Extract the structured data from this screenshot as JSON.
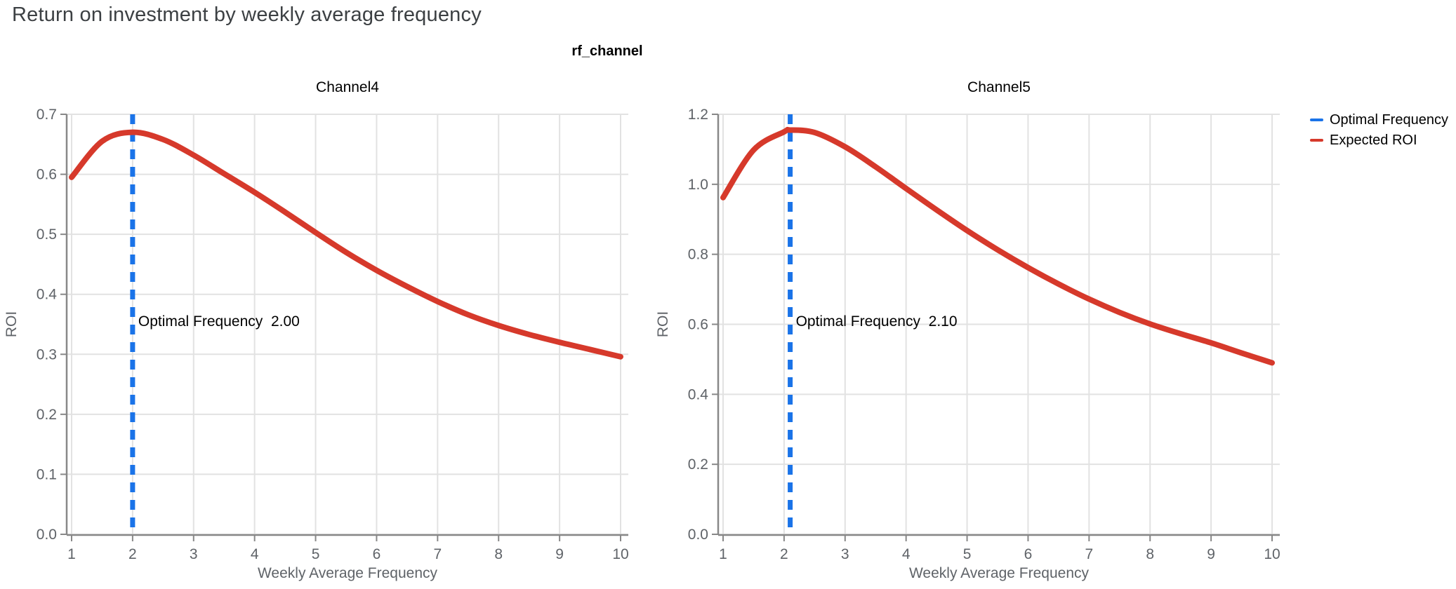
{
  "page": {
    "title": "Return on investment by weekly average frequency"
  },
  "facet": {
    "title": "rf_channel"
  },
  "legend": {
    "items": [
      {
        "label": "Optimal Frequency",
        "color": "#1A73E8"
      },
      {
        "label": "Expected ROI",
        "color": "#D6392B"
      }
    ]
  },
  "colors": {
    "optimal_frequency": "#1A73E8",
    "expected_roi": "#D6392B",
    "grid": "#E2E2E2",
    "axis": "#888888",
    "tick_label": "#5F6368",
    "page_title": "#3C4043"
  },
  "chart_data": [
    {
      "type": "line",
      "title": "Channel4",
      "xlabel": "Weekly Average Frequency",
      "ylabel": "ROI",
      "xlim": [
        1,
        10
      ],
      "ylim": [
        0,
        0.7
      ],
      "grid": true,
      "xticks": [
        1,
        2,
        3,
        4,
        5,
        6,
        7,
        8,
        9,
        10
      ],
      "ytick_values": [
        0.0,
        0.1,
        0.2,
        0.3,
        0.4,
        0.5,
        0.6,
        0.7
      ],
      "ytick_labels": [
        "0.0",
        "0.1",
        "0.2",
        "0.3",
        "0.4",
        "0.5",
        "0.6",
        "0.7"
      ],
      "optimal_frequency": 2.0,
      "annotation": "Optimal Frequency  2.00",
      "series": [
        {
          "name": "Expected ROI",
          "x": [
            1,
            1.5,
            2,
            2.5,
            3,
            3.5,
            4,
            4.5,
            5,
            5.5,
            6,
            6.5,
            7,
            7.5,
            8,
            8.5,
            9,
            9.5,
            10
          ],
          "y": [
            0.595,
            0.655,
            0.67,
            0.658,
            0.632,
            0.601,
            0.57,
            0.537,
            0.503,
            0.47,
            0.44,
            0.413,
            0.388,
            0.366,
            0.348,
            0.333,
            0.32,
            0.308,
            0.296
          ]
        }
      ]
    },
    {
      "type": "line",
      "title": "Channel5",
      "xlabel": "Weekly Average Frequency",
      "ylabel": "ROI",
      "xlim": [
        1,
        10
      ],
      "ylim": [
        0,
        1.2
      ],
      "grid": true,
      "xticks": [
        1,
        2,
        3,
        4,
        5,
        6,
        7,
        8,
        9,
        10
      ],
      "ytick_values": [
        0.0,
        0.2,
        0.4,
        0.6,
        0.8,
        1.0,
        1.2
      ],
      "ytick_labels": [
        "0.0",
        "0.2",
        "0.4",
        "0.6",
        "0.8",
        "1.0",
        "1.2"
      ],
      "optimal_frequency": 2.1,
      "annotation": "Optimal Frequency  2.10",
      "series": [
        {
          "name": "Expected ROI",
          "x": [
            1,
            1.5,
            2,
            2.1,
            2.5,
            3,
            3.5,
            4,
            4.5,
            5,
            5.5,
            6,
            6.5,
            7,
            7.5,
            8,
            8.5,
            9,
            9.5,
            10
          ],
          "y": [
            0.962,
            1.098,
            1.15,
            1.155,
            1.148,
            1.107,
            1.05,
            0.988,
            0.927,
            0.868,
            0.813,
            0.762,
            0.715,
            0.672,
            0.634,
            0.601,
            0.573,
            0.547,
            0.518,
            0.49
          ]
        }
      ]
    }
  ]
}
